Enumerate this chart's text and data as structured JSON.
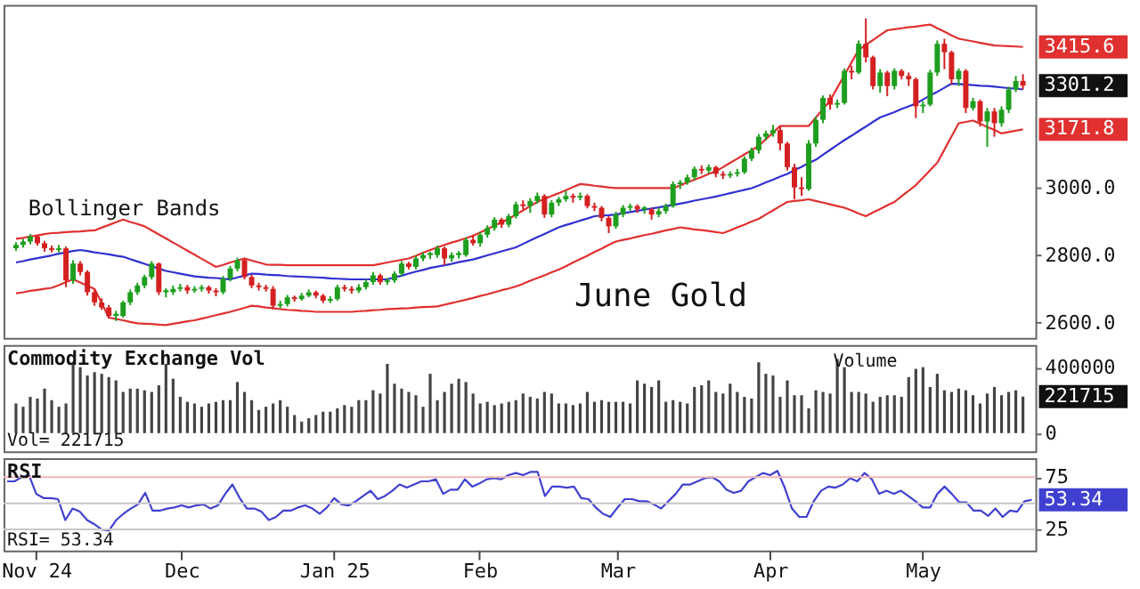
{
  "chart_data": [
    {
      "type": "candlestick",
      "ylim": [
        2555,
        3540
      ],
      "tick_labels": "y",
      "yticks": [
        {
          "value": 2600,
          "label": "2600.0"
        },
        {
          "value": 2800,
          "label": "2800.0"
        },
        {
          "value": 3000,
          "label": "3000.0"
        }
      ],
      "categories": [
        null,
        null,
        null,
        null,
        null,
        null,
        null,
        null,
        null,
        null,
        null,
        null,
        null,
        null,
        null,
        null,
        null,
        null,
        null,
        null,
        null,
        null,
        null,
        null,
        null,
        null,
        null,
        null,
        null,
        null,
        null,
        null,
        null,
        null,
        null,
        null,
        null,
        null,
        null,
        null,
        null,
        null,
        null,
        null,
        null,
        null,
        null,
        null,
        null,
        null,
        null,
        null,
        null,
        null,
        null,
        null,
        null,
        null,
        null,
        null,
        null,
        null,
        null,
        null,
        null,
        null,
        null,
        null,
        null,
        null,
        null,
        null,
        null,
        null,
        null,
        null,
        null,
        null,
        null,
        null,
        null,
        null,
        null,
        null,
        null,
        null,
        null,
        null,
        null,
        null,
        null,
        null,
        null,
        null,
        null,
        null,
        null,
        null,
        null,
        null,
        null,
        null,
        null,
        null,
        null,
        null,
        null,
        null,
        null,
        null,
        null,
        null,
        null,
        null,
        null,
        null,
        null,
        null,
        null,
        null,
        null,
        null,
        null,
        null,
        null,
        null,
        null,
        null,
        null,
        null,
        null,
        null,
        null,
        null,
        null,
        null,
        null,
        null,
        null,
        null,
        null,
        null
      ],
      "ohlc": [
        [
          2820,
          2838,
          2812,
          2830
        ],
        [
          2830,
          2848,
          2822,
          2840
        ],
        [
          2840,
          2862,
          2832,
          2855
        ],
        [
          2855,
          2860,
          2828,
          2835
        ],
        [
          2835,
          2842,
          2810,
          2820
        ],
        [
          2820,
          2828,
          2808,
          2815
        ],
        [
          2815,
          2830,
          2808,
          2820
        ],
        [
          2820,
          2825,
          2705,
          2725
        ],
        [
          2725,
          2785,
          2715,
          2775
        ],
        [
          2775,
          2782,
          2740,
          2750
        ],
        [
          2750,
          2755,
          2680,
          2690
        ],
        [
          2690,
          2698,
          2650,
          2660
        ],
        [
          2660,
          2672,
          2638,
          2645
        ],
        [
          2645,
          2652,
          2612,
          2620
        ],
        [
          2620,
          2635,
          2605,
          2626
        ],
        [
          2620,
          2665,
          2615,
          2660
        ],
        [
          2660,
          2698,
          2652,
          2690
        ],
        [
          2690,
          2718,
          2682,
          2710
        ],
        [
          2710,
          2742,
          2702,
          2735
        ],
        [
          2735,
          2782,
          2728,
          2775
        ],
        [
          2775,
          2778,
          2682,
          2690
        ],
        [
          2690,
          2702,
          2675,
          2696
        ],
        [
          2690,
          2710,
          2682,
          2700
        ],
        [
          2700,
          2715,
          2692,
          2705
        ],
        [
          2705,
          2712,
          2685,
          2695
        ],
        [
          2695,
          2708,
          2688,
          2700
        ],
        [
          2700,
          2712,
          2692,
          2705
        ],
        [
          2705,
          2710,
          2686,
          2695
        ],
        [
          2695,
          2702,
          2678,
          2690
        ],
        [
          2690,
          2738,
          2684,
          2730
        ],
        [
          2730,
          2768,
          2722,
          2760
        ],
        [
          2760,
          2792,
          2752,
          2785
        ],
        [
          2785,
          2790,
          2728,
          2735
        ],
        [
          2735,
          2742,
          2702,
          2710
        ],
        [
          2710,
          2718,
          2695,
          2705
        ],
        [
          2705,
          2712,
          2692,
          2700
        ],
        [
          2700,
          2708,
          2640,
          2650
        ],
        [
          2650,
          2665,
          2642,
          2655
        ],
        [
          2655,
          2682,
          2648,
          2675
        ],
        [
          2675,
          2680,
          2662,
          2670
        ],
        [
          2670,
          2688,
          2665,
          2680
        ],
        [
          2680,
          2698,
          2675,
          2690
        ],
        [
          2690,
          2695,
          2672,
          2680
        ],
        [
          2680,
          2685,
          2658,
          2665
        ],
        [
          2665,
          2678,
          2658,
          2670
        ],
        [
          2670,
          2712,
          2665,
          2705
        ],
        [
          2705,
          2712,
          2692,
          2700
        ],
        [
          2700,
          2708,
          2686,
          2695
        ],
        [
          2695,
          2714,
          2688,
          2705
        ],
        [
          2705,
          2728,
          2698,
          2720
        ],
        [
          2720,
          2750,
          2712,
          2740
        ],
        [
          2740,
          2745,
          2712,
          2720
        ],
        [
          2720,
          2732,
          2712,
          2725
        ],
        [
          2725,
          2752,
          2718,
          2745
        ],
        [
          2745,
          2782,
          2738,
          2775
        ],
        [
          2775,
          2780,
          2758,
          2765
        ],
        [
          2765,
          2798,
          2758,
          2790
        ],
        [
          2790,
          2808,
          2782,
          2800
        ],
        [
          2800,
          2810,
          2788,
          2806
        ],
        [
          2800,
          2828,
          2792,
          2820
        ],
        [
          2820,
          2825,
          2770,
          2790
        ],
        [
          2790,
          2808,
          2780,
          2800
        ],
        [
          2800,
          2812,
          2790,
          2806
        ],
        [
          2800,
          2852,
          2795,
          2845
        ],
        [
          2845,
          2860,
          2828,
          2835
        ],
        [
          2835,
          2868,
          2825,
          2860
        ],
        [
          2860,
          2888,
          2852,
          2880
        ],
        [
          2880,
          2912,
          2872,
          2905
        ],
        [
          2905,
          2910,
          2880,
          2890
        ],
        [
          2890,
          2922,
          2882,
          2915
        ],
        [
          2915,
          2958,
          2908,
          2950
        ],
        [
          2950,
          2962,
          2935,
          2945
        ],
        [
          2945,
          2968,
          2925,
          2960
        ],
        [
          2960,
          2985,
          2952,
          2975
        ],
        [
          2975,
          2980,
          2910,
          2920
        ],
        [
          2920,
          2962,
          2912,
          2955
        ],
        [
          2955,
          2972,
          2945,
          2965
        ],
        [
          2965,
          2990,
          2958,
          2975
        ],
        [
          2975,
          2982,
          2955,
          2970
        ],
        [
          2970,
          2985,
          2962,
          2975
        ],
        [
          2975,
          2980,
          2938,
          2945
        ],
        [
          2945,
          2955,
          2930,
          2940
        ],
        [
          2940,
          2945,
          2900,
          2910
        ],
        [
          2910,
          2915,
          2865,
          2885
        ],
        [
          2885,
          2928,
          2878,
          2920
        ],
        [
          2920,
          2948,
          2912,
          2940
        ],
        [
          2940,
          2952,
          2930,
          2945
        ],
        [
          2945,
          2950,
          2925,
          2935
        ],
        [
          2935,
          2945,
          2922,
          2941
        ],
        [
          2935,
          2940,
          2905,
          2920
        ],
        [
          2920,
          2940,
          2912,
          2930
        ],
        [
          2930,
          2952,
          2922,
          2945
        ],
        [
          2945,
          3018,
          2940,
          3010
        ],
        [
          3010,
          3022,
          2995,
          3015
        ],
        [
          3015,
          3038,
          3008,
          3030
        ],
        [
          3030,
          3062,
          3022,
          3055
        ],
        [
          3055,
          3065,
          3040,
          3050
        ],
        [
          3050,
          3068,
          3042,
          3060
        ],
        [
          3060,
          3064,
          3030,
          3040
        ],
        [
          3040,
          3048,
          3025,
          3035
        ],
        [
          3035,
          3048,
          3028,
          3040
        ],
        [
          3040,
          3055,
          3032,
          3045
        ],
        [
          3045,
          3092,
          3040,
          3085
        ],
        [
          3085,
          3118,
          3078,
          3110
        ],
        [
          3110,
          3158,
          3100,
          3150
        ],
        [
          3150,
          3168,
          3140,
          3160
        ],
        [
          3160,
          3185,
          3150,
          3170
        ],
        [
          3170,
          3180,
          3110,
          3130
        ],
        [
          3130,
          3135,
          3050,
          3060
        ],
        [
          3060,
          3070,
          2965,
          3000
        ],
        [
          3000,
          3030,
          2975,
          2995
        ],
        [
          2995,
          3140,
          2990,
          3130
        ],
        [
          3130,
          3210,
          3120,
          3200
        ],
        [
          3200,
          3272,
          3190,
          3265
        ],
        [
          3265,
          3275,
          3230,
          3245
        ],
        [
          3245,
          3260,
          3235,
          3250
        ],
        [
          3250,
          3352,
          3245,
          3345
        ],
        [
          3345,
          3360,
          3320,
          3340
        ],
        [
          3340,
          3435,
          3335,
          3425
        ],
        [
          3425,
          3500,
          3370,
          3385
        ],
        [
          3385,
          3390,
          3290,
          3300
        ],
        [
          3300,
          3350,
          3280,
          3340
        ],
        [
          3340,
          3345,
          3270,
          3300
        ],
        [
          3300,
          3352,
          3290,
          3345
        ],
        [
          3345,
          3350,
          3320,
          3330
        ],
        [
          3330,
          3340,
          3300,
          3320
        ],
        [
          3320,
          3325,
          3205,
          3240
        ],
        [
          3240,
          3255,
          3220,
          3245
        ],
        [
          3245,
          3348,
          3240,
          3340
        ],
        [
          3340,
          3435,
          3330,
          3425
        ],
        [
          3425,
          3440,
          3350,
          3400
        ],
        [
          3400,
          3405,
          3305,
          3320
        ],
        [
          3320,
          3352,
          3300,
          3345
        ],
        [
          3345,
          3350,
          3220,
          3235
        ],
        [
          3235,
          3265,
          3228,
          3255
        ],
        [
          3255,
          3260,
          3180,
          3195
        ],
        [
          3195,
          3235,
          3120,
          3225
        ],
        [
          3225,
          3235,
          3150,
          3190
        ],
        [
          3190,
          3240,
          3180,
          3230
        ],
        [
          3230,
          3298,
          3220,
          3290
        ],
        [
          3290,
          3330,
          3282,
          3315
        ],
        [
          3315,
          3335,
          3290,
          3301.2
        ]
      ],
      "series": [
        {
          "type": "line",
          "color": "#e03030",
          "values": [
            2848,
            2851,
            2855,
            2858,
            2862,
            2865,
            2866,
            2868,
            2869,
            2870,
            2872,
            2873,
            2881,
            2889,
            2897,
            2905,
            2898,
            2892,
            2885,
            2873,
            2861,
            2849,
            2837,
            2825,
            2813,
            2801,
            2789,
            2777,
            2765,
            2771,
            2778,
            2784,
            2790,
            2784,
            2778,
            2772,
            2771,
            2771,
            2770,
            2770,
            2770,
            2770,
            2770,
            2770,
            2770,
            2770,
            2770,
            2770,
            2770,
            2770,
            2770,
            2774,
            2778,
            2782,
            2786,
            2790,
            2798,
            2807,
            2815,
            2823,
            2830,
            2837,
            2843,
            2850,
            2857,
            2867,
            2877,
            2887,
            2897,
            2907,
            2920,
            2932,
            2945,
            2957,
            2966,
            2975,
            2983,
            2992,
            3001,
            3010,
            3008,
            3005,
            3003,
            3000,
            2998,
            2998,
            2998,
            2998,
            2998,
            2998,
            2998,
            2998,
            2998,
            3006,
            3015,
            3023,
            3031,
            3040,
            3048,
            3060,
            3073,
            3085,
            3098,
            3110,
            3123,
            3143,
            3162,
            3182,
            3182,
            3182,
            3182,
            3182,
            3207,
            3232,
            3257,
            3295,
            3332,
            3370,
            3407,
            3422,
            3436,
            3451,
            3465,
            3468,
            3471,
            3474,
            3476,
            3479,
            3482,
            3471,
            3461,
            3450,
            3440,
            3436,
            3432,
            3428,
            3424,
            3420,
            3419,
            3418,
            3417,
            3415.6
          ]
        },
        {
          "type": "line",
          "color": "#3030d0",
          "values": [
            2778,
            2782,
            2787,
            2791,
            2795,
            2799,
            2804,
            2808,
            2812,
            2815,
            2812,
            2808,
            2805,
            2802,
            2798,
            2795,
            2788,
            2781,
            2774,
            2767,
            2760,
            2753,
            2749,
            2745,
            2741,
            2737,
            2735,
            2733,
            2732,
            2730,
            2728,
            2734,
            2739,
            2745,
            2744,
            2742,
            2741,
            2740,
            2738,
            2737,
            2736,
            2735,
            2734,
            2733,
            2731,
            2730,
            2729,
            2728,
            2728,
            2728,
            2728,
            2728,
            2728,
            2734,
            2739,
            2745,
            2751,
            2756,
            2762,
            2766,
            2770,
            2774,
            2779,
            2783,
            2787,
            2793,
            2799,
            2805,
            2811,
            2817,
            2823,
            2833,
            2843,
            2853,
            2862,
            2872,
            2882,
            2889,
            2895,
            2902,
            2908,
            2915,
            2917,
            2918,
            2920,
            2924,
            2927,
            2931,
            2934,
            2938,
            2941,
            2945,
            2948,
            2952,
            2956,
            2961,
            2965,
            2969,
            2973,
            2978,
            2983,
            2988,
            2993,
            2998,
            3006,
            3015,
            3023,
            3032,
            3040,
            3051,
            3061,
            3072,
            3082,
            3097,
            3111,
            3126,
            3140,
            3153,
            3167,
            3180,
            3194,
            3207,
            3215,
            3223,
            3232,
            3240,
            3248,
            3260,
            3272,
            3283,
            3295,
            3307,
            3306,
            3304,
            3303,
            3301,
            3300,
            3298,
            3296,
            3294,
            3292,
            3290
          ]
        },
        {
          "type": "line",
          "color": "#e03030",
          "values": [
            2687,
            2690,
            2694,
            2697,
            2700,
            2703,
            2711,
            2720,
            2728,
            2719,
            2709,
            2700,
            2658,
            2615,
            2611,
            2607,
            2602,
            2598,
            2597,
            2596,
            2594,
            2593,
            2597,
            2600,
            2604,
            2607,
            2612,
            2617,
            2622,
            2627,
            2632,
            2638,
            2644,
            2650,
            2648,
            2645,
            2643,
            2640,
            2638,
            2637,
            2635,
            2634,
            2632,
            2632,
            2632,
            2632,
            2632,
            2632,
            2634,
            2635,
            2637,
            2638,
            2640,
            2641,
            2642,
            2643,
            2645,
            2646,
            2647,
            2648,
            2653,
            2658,
            2663,
            2668,
            2673,
            2679,
            2684,
            2690,
            2696,
            2701,
            2707,
            2715,
            2724,
            2732,
            2740,
            2749,
            2757,
            2767,
            2778,
            2788,
            2798,
            2809,
            2819,
            2830,
            2840,
            2845,
            2849,
            2854,
            2859,
            2863,
            2868,
            2873,
            2877,
            2882,
            2879,
            2876,
            2874,
            2871,
            2868,
            2865,
            2873,
            2882,
            2890,
            2899,
            2907,
            2920,
            2932,
            2945,
            2957,
            2960,
            2962,
            2965,
            2960,
            2955,
            2950,
            2945,
            2940,
            2932,
            2923,
            2915,
            2926,
            2936,
            2947,
            2957,
            2974,
            2990,
            3007,
            3029,
            3051,
            3073,
            3112,
            3151,
            3190,
            3194,
            3198,
            3189,
            3179,
            3170,
            3160,
            3164,
            3168,
            3171.8
          ]
        }
      ],
      "annotations": [
        "Bollinger Bands",
        "June Gold",
        "3415.6",
        "3301.2",
        "3171.8"
      ]
    },
    {
      "type": "bar",
      "title": "Commodity Exchange Vol",
      "color": "#444444",
      "ylim": [
        -110000,
        535000
      ],
      "yticks": [
        0,
        400000
      ],
      "tick_labels": "y",
      "categories": [
        null,
        null,
        null,
        null,
        null,
        null,
        null,
        null,
        null,
        null,
        null,
        null,
        null,
        null,
        null,
        null,
        null,
        null,
        null,
        null,
        null,
        null,
        null,
        null,
        null,
        null,
        null,
        null,
        null,
        null,
        null,
        null,
        null,
        null,
        null,
        null,
        null,
        null,
        null,
        null,
        null,
        null,
        null,
        null,
        null,
        null,
        null,
        null,
        null,
        null,
        null,
        null,
        null,
        null,
        null,
        null,
        null,
        null,
        null,
        null,
        null,
        null,
        null,
        null,
        null,
        null,
        null,
        null,
        null,
        null,
        null,
        null,
        null,
        null,
        null,
        null,
        null,
        null,
        null,
        null,
        null,
        null,
        null,
        null,
        null,
        null,
        null,
        null,
        null,
        null,
        null,
        null,
        null,
        null,
        null,
        null,
        null,
        null,
        null,
        null,
        null,
        null,
        null,
        null,
        null,
        null,
        null,
        null,
        null,
        null,
        null,
        null,
        null,
        null,
        null,
        null,
        null,
        null,
        null,
        null,
        null,
        null,
        null,
        null,
        null,
        null,
        null,
        null,
        null,
        null,
        null,
        null,
        null,
        null,
        null,
        null,
        null,
        null,
        null,
        null,
        null,
        null
      ],
      "values": [
        180000,
        160000,
        220000,
        210000,
        270000,
        200000,
        160000,
        180000,
        420000,
        400000,
        350000,
        370000,
        360000,
        340000,
        320000,
        250000,
        270000,
        270000,
        260000,
        250000,
        290000,
        420000,
        330000,
        220000,
        190000,
        180000,
        160000,
        180000,
        190000,
        200000,
        200000,
        310000,
        250000,
        200000,
        140000,
        160000,
        180000,
        200000,
        160000,
        110000,
        70000,
        90000,
        110000,
        130000,
        130000,
        150000,
        170000,
        160000,
        200000,
        200000,
        260000,
        240000,
        420000,
        300000,
        270000,
        250000,
        230000,
        160000,
        360000,
        200000,
        250000,
        300000,
        330000,
        310000,
        240000,
        180000,
        190000,
        170000,
        180000,
        190000,
        200000,
        240000,
        220000,
        210000,
        250000,
        240000,
        180000,
        180000,
        170000,
        180000,
        250000,
        190000,
        200000,
        190000,
        190000,
        190000,
        180000,
        320000,
        300000,
        280000,
        320000,
        190000,
        200000,
        190000,
        180000,
        280000,
        290000,
        320000,
        250000,
        240000,
        300000,
        250000,
        220000,
        210000,
        430000,
        360000,
        350000,
        220000,
        320000,
        230000,
        230000,
        150000,
        260000,
        250000,
        240000,
        450000,
        400000,
        250000,
        250000,
        240000,
        190000,
        220000,
        230000,
        230000,
        220000,
        340000,
        390000,
        400000,
        280000,
        360000,
        260000,
        250000,
        270000,
        260000,
        230000,
        180000,
        240000,
        280000,
        230000,
        250000,
        260000,
        221715
      ],
      "annotations": [
        "Volume",
        "Vol= 221715",
        "221715"
      ]
    },
    {
      "type": "line",
      "title": "RSI",
      "color": "#4040d0",
      "ylim": [
        5,
        93
      ],
      "yticks": [
        25,
        75
      ],
      "categories": [
        null,
        null,
        null,
        null,
        "Nov 24",
        null,
        null,
        null,
        null,
        null,
        null,
        null,
        null,
        null,
        null,
        null,
        null,
        null,
        null,
        null,
        null,
        null,
        null,
        null,
        "Dec",
        null,
        null,
        null,
        null,
        null,
        null,
        null,
        null,
        null,
        null,
        null,
        null,
        null,
        null,
        null,
        null,
        null,
        null,
        null,
        null,
        "Jan 25",
        null,
        null,
        null,
        null,
        null,
        null,
        null,
        null,
        null,
        null,
        null,
        null,
        null,
        null,
        null,
        null,
        null,
        null,
        null,
        "Feb",
        null,
        null,
        null,
        null,
        null,
        null,
        null,
        null,
        null,
        null,
        null,
        null,
        null,
        null,
        null,
        null,
        null,
        null,
        "Mar",
        null,
        null,
        null,
        null,
        null,
        null,
        null,
        null,
        null,
        null,
        null,
        null,
        null,
        null,
        null,
        null,
        null,
        null,
        null,
        null,
        "Apr",
        null,
        null,
        null,
        null,
        null,
        null,
        null,
        null,
        null,
        null,
        null,
        null,
        null,
        null,
        null,
        null,
        null,
        null,
        null,
        null,
        "May",
        null,
        null,
        null,
        null,
        null,
        null,
        null,
        null,
        null,
        null,
        null,
        null,
        null,
        null,
        null
      ],
      "ref_lines": [
        {
          "axis": "y",
          "value": 75,
          "color": "#f0b8b8"
        },
        {
          "axis": "y",
          "value": 50,
          "color": "#c8c8c8"
        },
        {
          "axis": "y",
          "value": 25,
          "color": "#c8c8c8"
        }
      ],
      "values": [
        71,
        71,
        75,
        77,
        59,
        55,
        55,
        54,
        34,
        45,
        42,
        34,
        30,
        25,
        24,
        34,
        40,
        45,
        49,
        60,
        43,
        43,
        45,
        46,
        48,
        46,
        48,
        49,
        45,
        48,
        59,
        68,
        55,
        45,
        45,
        42,
        34,
        37,
        43,
        43,
        46,
        48,
        45,
        40,
        46,
        55,
        49,
        48,
        52,
        57,
        62,
        54,
        57,
        62,
        68,
        65,
        68,
        71,
        71,
        73,
        59,
        63,
        63,
        73,
        66,
        69,
        73,
        74,
        73,
        77,
        79,
        77,
        80,
        80,
        57,
        66,
        66,
        65,
        66,
        55,
        54,
        46,
        40,
        37,
        46,
        54,
        54,
        52,
        52,
        49,
        45,
        52,
        59,
        68,
        68,
        71,
        74,
        75,
        71,
        63,
        60,
        62,
        71,
        75,
        79,
        77,
        81,
        65,
        45,
        37,
        37,
        52,
        62,
        66,
        65,
        68,
        74,
        71,
        79,
        73,
        59,
        62,
        59,
        62,
        57,
        52,
        46,
        46,
        59,
        66,
        59,
        51,
        51,
        43,
        43,
        38,
        45,
        37,
        43,
        42,
        52,
        53.34
      ],
      "annotations": [
        "RSI= 53.34",
        "53.34"
      ]
    }
  ]
}
